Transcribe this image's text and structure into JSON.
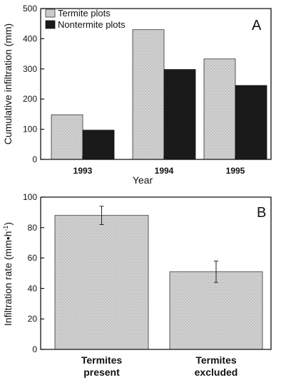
{
  "chart_data": [
    {
      "panel": "A",
      "type": "bar",
      "xlabel": "Year",
      "ylabel": "Cumulative infiltration (mm)",
      "ylim": [
        0,
        500
      ],
      "yticks": [
        0,
        100,
        200,
        300,
        400,
        500
      ],
      "categories": [
        "1993",
        "1994",
        "1995"
      ],
      "series": [
        {
          "name": "Termite plots",
          "values": [
            148,
            430,
            333
          ],
          "color": "#cfcfcf"
        },
        {
          "name": "Nontermite plots",
          "values": [
            97,
            298,
            245
          ],
          "color": "#1a1a1a"
        }
      ],
      "legend": "top-left",
      "grid": false
    },
    {
      "panel": "B",
      "type": "bar",
      "xlabel": "",
      "ylabel": "Infiltration rate (mm•h",
      "ylabel_sup": "-1",
      "ylabel_tail": ")",
      "ylim": [
        0,
        100
      ],
      "yticks": [
        0,
        20,
        40,
        60,
        80,
        100
      ],
      "categories": [
        [
          "Termites",
          "present"
        ],
        [
          "Termites",
          "excluded"
        ]
      ],
      "values": [
        88,
        51
      ],
      "errors": [
        6,
        7
      ],
      "color": "#cfcfcf",
      "grid": false
    }
  ]
}
